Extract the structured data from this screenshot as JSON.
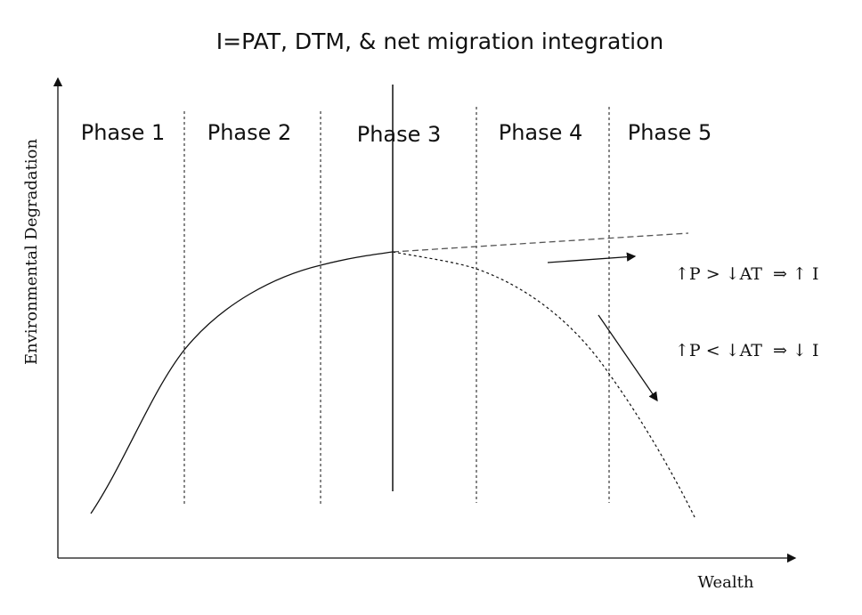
{
  "title": "I=PAT, DTM, & net migration integration",
  "y_axis_label": "Environmental Degradation",
  "x_axis_label": "Wealth",
  "phases": [
    "Phase 1",
    "Phase 2",
    "Phase 3",
    "Phase 4",
    "Phase 5"
  ],
  "annotations": [
    "↑P > ↓AT  ⇒ ↑ I",
    "↑P < ↓AT  ⇒ ↓ I"
  ]
}
